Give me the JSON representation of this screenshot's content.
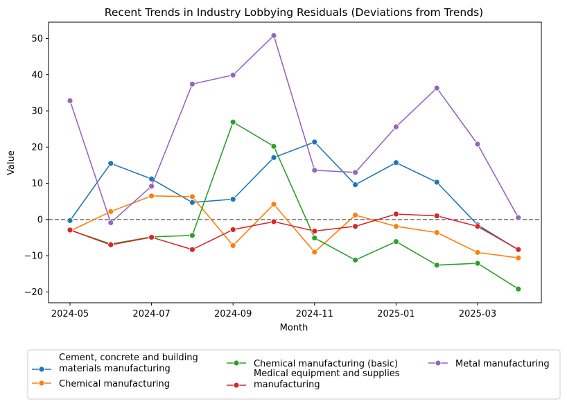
{
  "chart_data": {
    "type": "line",
    "title": "Recent Trends in Industry Lobbying Residuals (Deviations from Trends)",
    "xlabel": "Month",
    "ylabel": "Value",
    "x": [
      "2024-05",
      "2024-06",
      "2024-07",
      "2024-08",
      "2024-09",
      "2024-10",
      "2024-11",
      "2024-12",
      "2025-01",
      "2025-02",
      "2025-03",
      "2025-04"
    ],
    "x_tick_labels": [
      "2024-05",
      "2024-07",
      "2024-09",
      "2024-11",
      "2025-01",
      "2025-03"
    ],
    "ylim": [
      -23,
      54.5
    ],
    "y_ticks": [
      -20,
      -10,
      0,
      10,
      20,
      30,
      40,
      50
    ],
    "y_tick_labels": [
      "−20",
      "−10",
      "0",
      "10",
      "20",
      "30",
      "40",
      "50"
    ],
    "reference_line": {
      "y": 0,
      "style": "dashed",
      "color": "#808080"
    },
    "grid": false,
    "legend_placement": "bottom-outside",
    "series": [
      {
        "name": "Cement, concrete and building\nmaterials manufacturing",
        "color": "#1f77b4",
        "values": [
          -0.3,
          15.5,
          11.2,
          4.7,
          5.6,
          17.1,
          21.4,
          9.6,
          15.7,
          10.3,
          -1.5,
          -8.4
        ]
      },
      {
        "name": "Chemical manufacturing",
        "color": "#ff7f0e",
        "values": [
          -3.2,
          2.2,
          6.5,
          6.3,
          -7.2,
          4.2,
          -9.0,
          1.2,
          -1.9,
          -3.6,
          -9.1,
          -10.6
        ]
      },
      {
        "name": "Chemical manufacturing (basic)",
        "color": "#2ca02c",
        "values": [
          -2.9,
          -6.8,
          -4.8,
          -4.4,
          26.9,
          20.2,
          -5.1,
          -11.2,
          -6.1,
          -12.6,
          -12.1,
          -19.2
        ]
      },
      {
        "name": "Medical equipment and supplies\nmanufacturing",
        "color": "#d62728",
        "values": [
          -2.9,
          -7.0,
          -4.9,
          -8.3,
          -2.8,
          -0.6,
          -3.2,
          -1.9,
          1.5,
          1.0,
          -1.9,
          -8.3
        ]
      },
      {
        "name": "Metal manufacturing",
        "color": "#9467bd",
        "values": [
          32.8,
          -0.9,
          9.2,
          37.4,
          39.9,
          50.8,
          13.6,
          13.0,
          25.6,
          36.3,
          20.8,
          0.5
        ]
      }
    ]
  }
}
